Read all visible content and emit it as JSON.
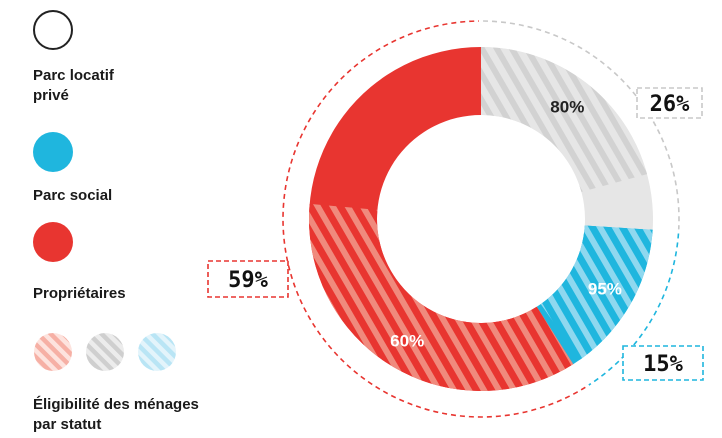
{
  "legend": {
    "items": [
      {
        "label": "Parc locatif privé",
        "label_lines": [
          "Parc locatif",
          "privé"
        ],
        "color": "#d9d9d9",
        "swatch_style": "outline"
      },
      {
        "label": "Parc social",
        "label_lines": [
          "Parc social"
        ],
        "color": "#1fb6de",
        "swatch_style": "filled"
      },
      {
        "label": "Propriétaires",
        "label_lines": [
          "Propriétaires"
        ],
        "color": "#e83530",
        "swatch_style": "filled"
      }
    ],
    "eligibility_label_lines": [
      "Éligibilité des ménages",
      "par statut"
    ]
  },
  "chart_data": {
    "type": "pie",
    "variant": "donut",
    "start": "top, clockwise",
    "categories": [
      "Parc locatif privé",
      "Parc social",
      "Propriétaires"
    ],
    "values": [
      26,
      15,
      59
    ],
    "value_labels": [
      "26%",
      "15%",
      "59%"
    ],
    "eligibility": [
      80,
      95,
      60
    ],
    "eligibility_labels": [
      "80%",
      "95%",
      "60%"
    ],
    "colors": [
      "#e6e6e6",
      "#1fb6de",
      "#e83530"
    ],
    "hatch_colors": [
      "#d2d2d2",
      "#8fd8ef",
      "#f08a7d"
    ],
    "callout_colors": [
      "#c8c8c8",
      "#1fb6de",
      "#e83530"
    ],
    "title": ""
  }
}
